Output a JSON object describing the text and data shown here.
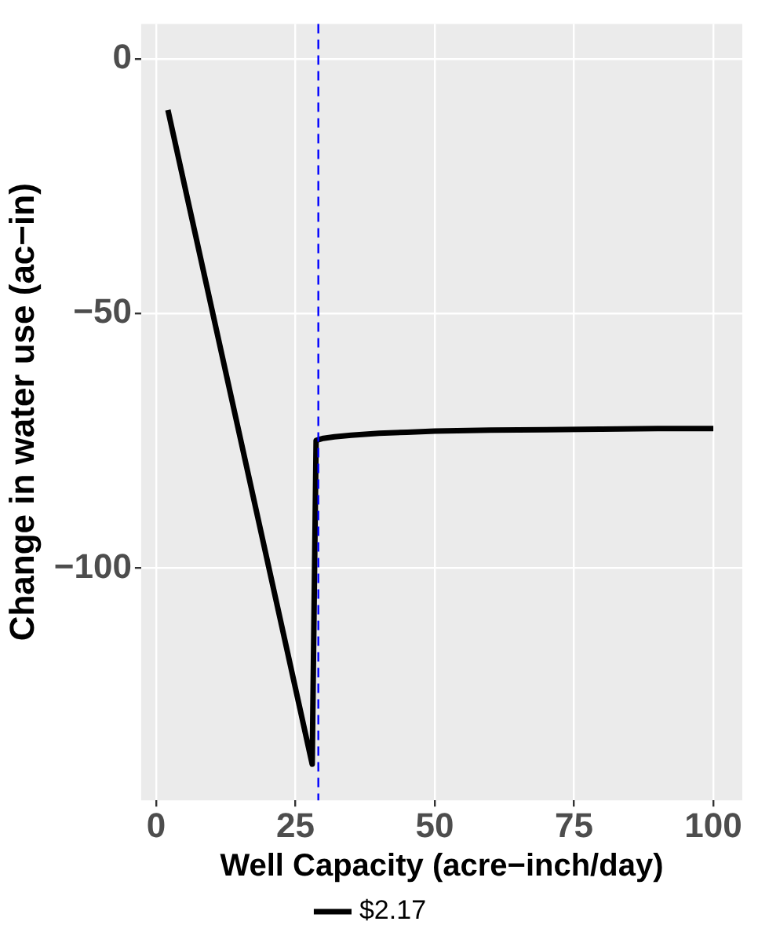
{
  "chart_data": {
    "type": "line",
    "xlabel": "Well Capacity (acre−inch/day)",
    "ylabel": "Change in water use (ac−in)",
    "x": [
      2.1,
      28.0,
      28.7,
      30,
      32,
      35,
      40,
      45,
      50,
      60,
      70,
      80,
      90,
      100
    ],
    "series": [
      {
        "name": "$2.17",
        "color": "#000000",
        "values": [
          -10,
          -138.5,
          -74.9,
          -74.5,
          -74.2,
          -73.9,
          -73.5,
          -73.3,
          -73.1,
          -72.9,
          -72.8,
          -72.7,
          -72.6,
          -72.6
        ]
      }
    ],
    "xlim": [
      -2.7,
      105.2
    ],
    "ylim": [
      -145.6,
      6.9
    ],
    "xticks": [
      0,
      25,
      50,
      75,
      100
    ],
    "yticks": [
      -100,
      -50,
      0
    ],
    "ref_lines": [
      {
        "axis": "x",
        "value": 29.1,
        "color": "#0000ff",
        "line_style": "dashed"
      }
    ],
    "grid": true,
    "legend": "bottom",
    "marker": "none",
    "line_style": "solid"
  }
}
